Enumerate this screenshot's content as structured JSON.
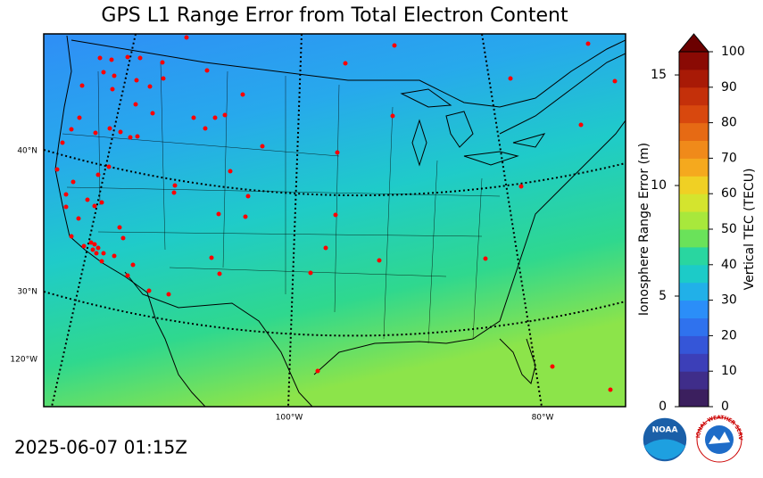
{
  "title": "GPS L1 Range Error from Total Electron Content",
  "timestamp": "2025-06-07 01:15Z",
  "map": {
    "lat_labels": [
      "40°N",
      "30°N"
    ],
    "lon_labels": [
      "120°W",
      "100°W",
      "80°W"
    ]
  },
  "colorbar": {
    "label": "Vertical TEC (TECU)",
    "ylim": [
      0,
      100
    ],
    "yticks": [
      0,
      10,
      20,
      30,
      40,
      50,
      60,
      70,
      80,
      90,
      100
    ],
    "y2label": "Ionosphere Range Error (m)",
    "y2lim": [
      0,
      16.05
    ],
    "y2ticks": [
      0,
      5,
      10,
      15
    ],
    "colors": [
      "#3b1f5e",
      "#3f2d8a",
      "#3c3fb8",
      "#3556d8",
      "#2f72ee",
      "#2b8ef8",
      "#21b0e8",
      "#1ccbc8",
      "#29d6a0",
      "#6ae25a",
      "#a8e83c",
      "#d4e42e",
      "#f0d024",
      "#f5a91e",
      "#f08a1a",
      "#e66a14",
      "#d8480e",
      "#c4300a",
      "#a81a06",
      "#8a0a04"
    ],
    "extend_color": "#6b0000"
  },
  "logos": [
    "NOAA",
    "NATIONAL WEATHER SERVICE"
  ]
}
